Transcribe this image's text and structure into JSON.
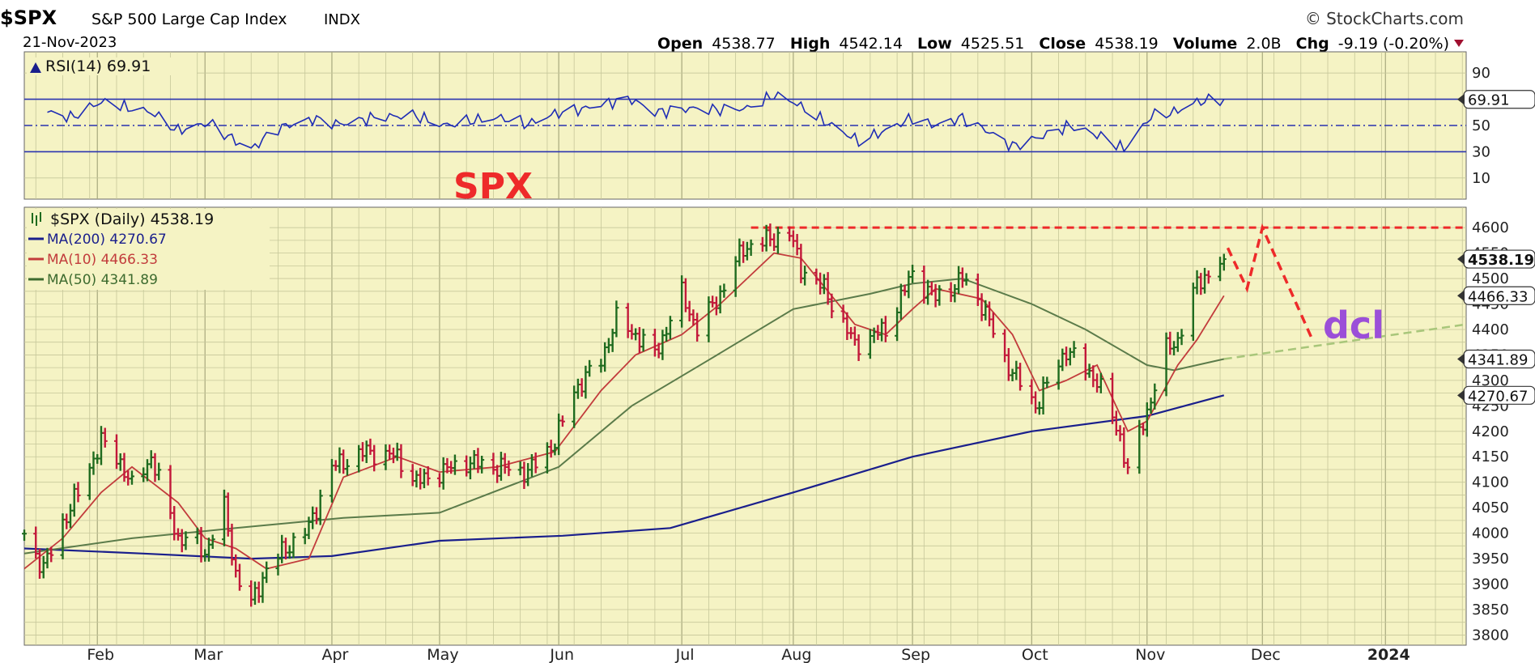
{
  "header": {
    "symbol": "$SPX",
    "name": "S&P 500 Large Cap Index",
    "exchange": "INDX",
    "date": "21-Nov-2023",
    "brand": "© StockCharts.com",
    "open_label": "Open",
    "open": "4538.77",
    "high_label": "High",
    "high": "4542.14",
    "low_label": "Low",
    "low": "4525.51",
    "close_label": "Close",
    "close": "4538.19",
    "volume_label": "Volume",
    "volume": "2.0B",
    "chg_label": "Chg",
    "chg": "-9.19 (-0.20%)"
  },
  "annotations": {
    "spx": "SPX",
    "dcl": "dcl"
  },
  "colors": {
    "bg": "#f5f3c4",
    "grid": "#c6c79a",
    "up": "#1f6b1f",
    "down": "#c2183a",
    "ma200": "#1a1f8c",
    "ma10": "#c23c3c",
    "ma50": "#5b7b4a",
    "rsi": "#1f2db5",
    "annot_red": "#ee2a2a",
    "annot_purple": "#9b4fd8",
    "annot_green": "#a8c67a"
  },
  "chart_data": [
    {
      "type": "line",
      "title": "RSI(14) 69.91",
      "legend": [
        {
          "name": "RSI(14) 69.91"
        }
      ],
      "ylim": [
        0,
        100
      ],
      "ytick_labels": [
        "10",
        "30",
        "50",
        "69.91",
        "90"
      ],
      "ytick_values": [
        10,
        30,
        50,
        69.91,
        90
      ],
      "reference_lines": [
        30,
        50,
        70
      ],
      "last_value_badge": "69.91",
      "series": [
        {
          "name": "RSI(14)",
          "x": [
            "2023-01-19",
            "2023-01-25",
            "2023-02-02",
            "2023-02-08",
            "2023-02-15",
            "2023-02-22",
            "2023-03-02",
            "2023-03-09",
            "2023-03-13",
            "2023-03-20",
            "2023-03-29",
            "2023-04-05",
            "2023-04-14",
            "2023-04-24",
            "2023-05-02",
            "2023-05-10",
            "2023-05-17",
            "2023-05-24",
            "2023-05-31",
            "2023-06-08",
            "2023-06-13",
            "2023-06-20",
            "2023-06-26",
            "2023-07-05",
            "2023-07-13",
            "2023-07-20",
            "2023-07-27",
            "2023-08-01",
            "2023-08-08",
            "2023-08-18",
            "2023-08-25",
            "2023-09-01",
            "2023-09-07",
            "2023-09-14",
            "2023-09-21",
            "2023-09-27",
            "2023-10-05",
            "2023-10-12",
            "2023-10-18",
            "2023-10-26",
            "2023-11-02",
            "2023-11-08",
            "2023-11-14",
            "2023-11-21"
          ],
          "values": [
            60,
            56,
            68,
            64,
            60,
            46,
            52,
            38,
            32,
            48,
            55,
            51,
            56,
            58,
            50,
            54,
            56,
            51,
            59,
            63,
            67,
            70,
            60,
            63,
            62,
            63,
            73,
            68,
            55,
            38,
            46,
            56,
            50,
            56,
            45,
            34,
            42,
            50,
            44,
            32,
            57,
            60,
            68,
            69.91
          ]
        }
      ]
    },
    {
      "type": "line",
      "title": "$SPX (Daily) 4538.19",
      "legend": [
        {
          "name": "$SPX (Daily) 4538.19"
        },
        {
          "name": "MA(200) 4270.67"
        },
        {
          "name": "MA(10) 4466.33"
        },
        {
          "name": "MA(50) 4341.89"
        }
      ],
      "ylim": [
        3780,
        4640
      ],
      "ytick_labels": [
        "3800",
        "3850",
        "3900",
        "3950",
        "4000",
        "4050",
        "4100",
        "4150",
        "4200",
        "4250",
        "4300",
        "4350",
        "4400",
        "4450",
        "4500",
        "4550",
        "4600"
      ],
      "ytick_values": [
        3800,
        3850,
        3900,
        3950,
        4000,
        4050,
        4100,
        4150,
        4200,
        4250,
        4300,
        4350,
        4400,
        4450,
        4500,
        4550,
        4600
      ],
      "last_value_badges": [
        {
          "value": 4538.19,
          "label": "4538.19"
        },
        {
          "value": 4466.33,
          "label": "4466.33"
        },
        {
          "value": 4341.89,
          "label": "4341.89"
        },
        {
          "value": 4270.67,
          "label": "4270.67"
        }
      ],
      "xticks": [
        {
          "date": "2023-02-01",
          "label": "Feb"
        },
        {
          "date": "2023-03-01",
          "label": "Mar"
        },
        {
          "date": "2023-04-03",
          "label": "Apr"
        },
        {
          "date": "2023-05-01",
          "label": "May"
        },
        {
          "date": "2023-06-01",
          "label": "Jun"
        },
        {
          "date": "2023-07-03",
          "label": "Jul"
        },
        {
          "date": "2023-08-01",
          "label": "Aug"
        },
        {
          "date": "2023-09-01",
          "label": "Sep"
        },
        {
          "date": "2023-10-02",
          "label": "Oct"
        },
        {
          "date": "2023-11-01",
          "label": "Nov"
        },
        {
          "date": "2023-12-01",
          "label": "Dec"
        },
        {
          "date": "2024-01-02",
          "label": "2024"
        }
      ],
      "xlim": [
        "2023-01-13",
        "2024-01-23"
      ],
      "price": {
        "name": "$SPX",
        "x": [
          "2023-01-13",
          "2023-01-18",
          "2023-01-23",
          "2023-01-27",
          "2023-02-02",
          "2023-02-07",
          "2023-02-10",
          "2023-02-15",
          "2023-02-22",
          "2023-02-27",
          "2023-03-01",
          "2023-03-06",
          "2023-03-09",
          "2023-03-13",
          "2023-03-17",
          "2023-03-22",
          "2023-03-28",
          "2023-04-03",
          "2023-04-12",
          "2023-04-20",
          "2023-04-25",
          "2023-05-01",
          "2023-05-08",
          "2023-05-16",
          "2023-05-24",
          "2023-05-31",
          "2023-06-05",
          "2023-06-12",
          "2023-06-16",
          "2023-06-21",
          "2023-06-26",
          "2023-07-03",
          "2023-07-07",
          "2023-07-13",
          "2023-07-19",
          "2023-07-27",
          "2023-07-31",
          "2023-08-03",
          "2023-08-09",
          "2023-08-17",
          "2023-08-25",
          "2023-09-01",
          "2023-09-07",
          "2023-09-14",
          "2023-09-19",
          "2023-09-25",
          "2023-10-03",
          "2023-10-11",
          "2023-10-19",
          "2023-10-25",
          "2023-10-27",
          "2023-11-01",
          "2023-11-06",
          "2023-11-09",
          "2023-11-14",
          "2023-11-21"
        ],
        "values": [
          3999,
          3930,
          4020,
          4080,
          4180,
          4140,
          4090,
          4150,
          3990,
          3980,
          3960,
          4050,
          3920,
          3860,
          3930,
          3970,
          4010,
          4130,
          4160,
          4150,
          4100,
          4120,
          4140,
          4130,
          4120,
          4180,
          4280,
          4340,
          4420,
          4390,
          4350,
          4470,
          4400,
          4470,
          4560,
          4580,
          4590,
          4520,
          4480,
          4370,
          4400,
          4510,
          4460,
          4500,
          4450,
          4340,
          4250,
          4360,
          4300,
          4190,
          4120,
          4240,
          4360,
          4380,
          4490,
          4538.19
        ]
      },
      "ma10": {
        "name": "MA(10)",
        "x": [
          "2023-01-13",
          "2023-01-23",
          "2023-02-02",
          "2023-02-10",
          "2023-02-22",
          "2023-03-01",
          "2023-03-09",
          "2023-03-17",
          "2023-03-28",
          "2023-04-06",
          "2023-04-20",
          "2023-05-01",
          "2023-05-16",
          "2023-05-31",
          "2023-06-12",
          "2023-06-21",
          "2023-07-03",
          "2023-07-13",
          "2023-07-27",
          "2023-08-03",
          "2023-08-17",
          "2023-08-25",
          "2023-09-01",
          "2023-09-07",
          "2023-09-19",
          "2023-09-27",
          "2023-10-04",
          "2023-10-11",
          "2023-10-19",
          "2023-10-27",
          "2023-11-01",
          "2023-11-09",
          "2023-11-14",
          "2023-11-21"
        ],
        "values": [
          3930,
          3990,
          4080,
          4130,
          4060,
          3990,
          3970,
          3930,
          3950,
          4110,
          4150,
          4120,
          4130,
          4160,
          4280,
          4350,
          4390,
          4450,
          4550,
          4540,
          4410,
          4390,
          4440,
          4480,
          4460,
          4390,
          4280,
          4300,
          4330,
          4200,
          4220,
          4330,
          4380,
          4466.33
        ]
      },
      "ma50": {
        "name": "MA(50)",
        "x": [
          "2023-01-13",
          "2023-02-10",
          "2023-03-09",
          "2023-04-06",
          "2023-05-01",
          "2023-06-01",
          "2023-06-20",
          "2023-07-10",
          "2023-08-01",
          "2023-08-21",
          "2023-09-01",
          "2023-09-14",
          "2023-10-02",
          "2023-10-16",
          "2023-11-01",
          "2023-11-08",
          "2023-11-21"
        ],
        "values": [
          3960,
          3990,
          4010,
          4030,
          4040,
          4130,
          4250,
          4340,
          4440,
          4470,
          4490,
          4500,
          4450,
          4400,
          4330,
          4320,
          4341.89
        ]
      },
      "ma200": {
        "name": "MA(200)",
        "x": [
          "2023-01-13",
          "2023-02-13",
          "2023-03-13",
          "2023-04-03",
          "2023-05-01",
          "2023-06-02",
          "2023-06-30",
          "2023-08-01",
          "2023-09-01",
          "2023-10-02",
          "2023-11-01",
          "2023-11-21"
        ],
        "values": [
          3970,
          3960,
          3950,
          3955,
          3985,
          3995,
          4010,
          4080,
          4150,
          4200,
          4230,
          4270.67
        ]
      },
      "projection": {
        "name": "dcl",
        "x": [
          "2023-11-22",
          "2023-11-27",
          "2023-12-01",
          "2023-12-14"
        ],
        "values": [
          4560,
          4480,
          4600,
          4380
        ]
      },
      "resistance_level": {
        "value": 4600,
        "from": "2023-07-21",
        "to": "2024-01-23"
      },
      "support_trend": {
        "from": [
          "2023-11-21",
          4341.89
        ],
        "to": [
          "2024-01-23",
          4410
        ]
      }
    }
  ]
}
